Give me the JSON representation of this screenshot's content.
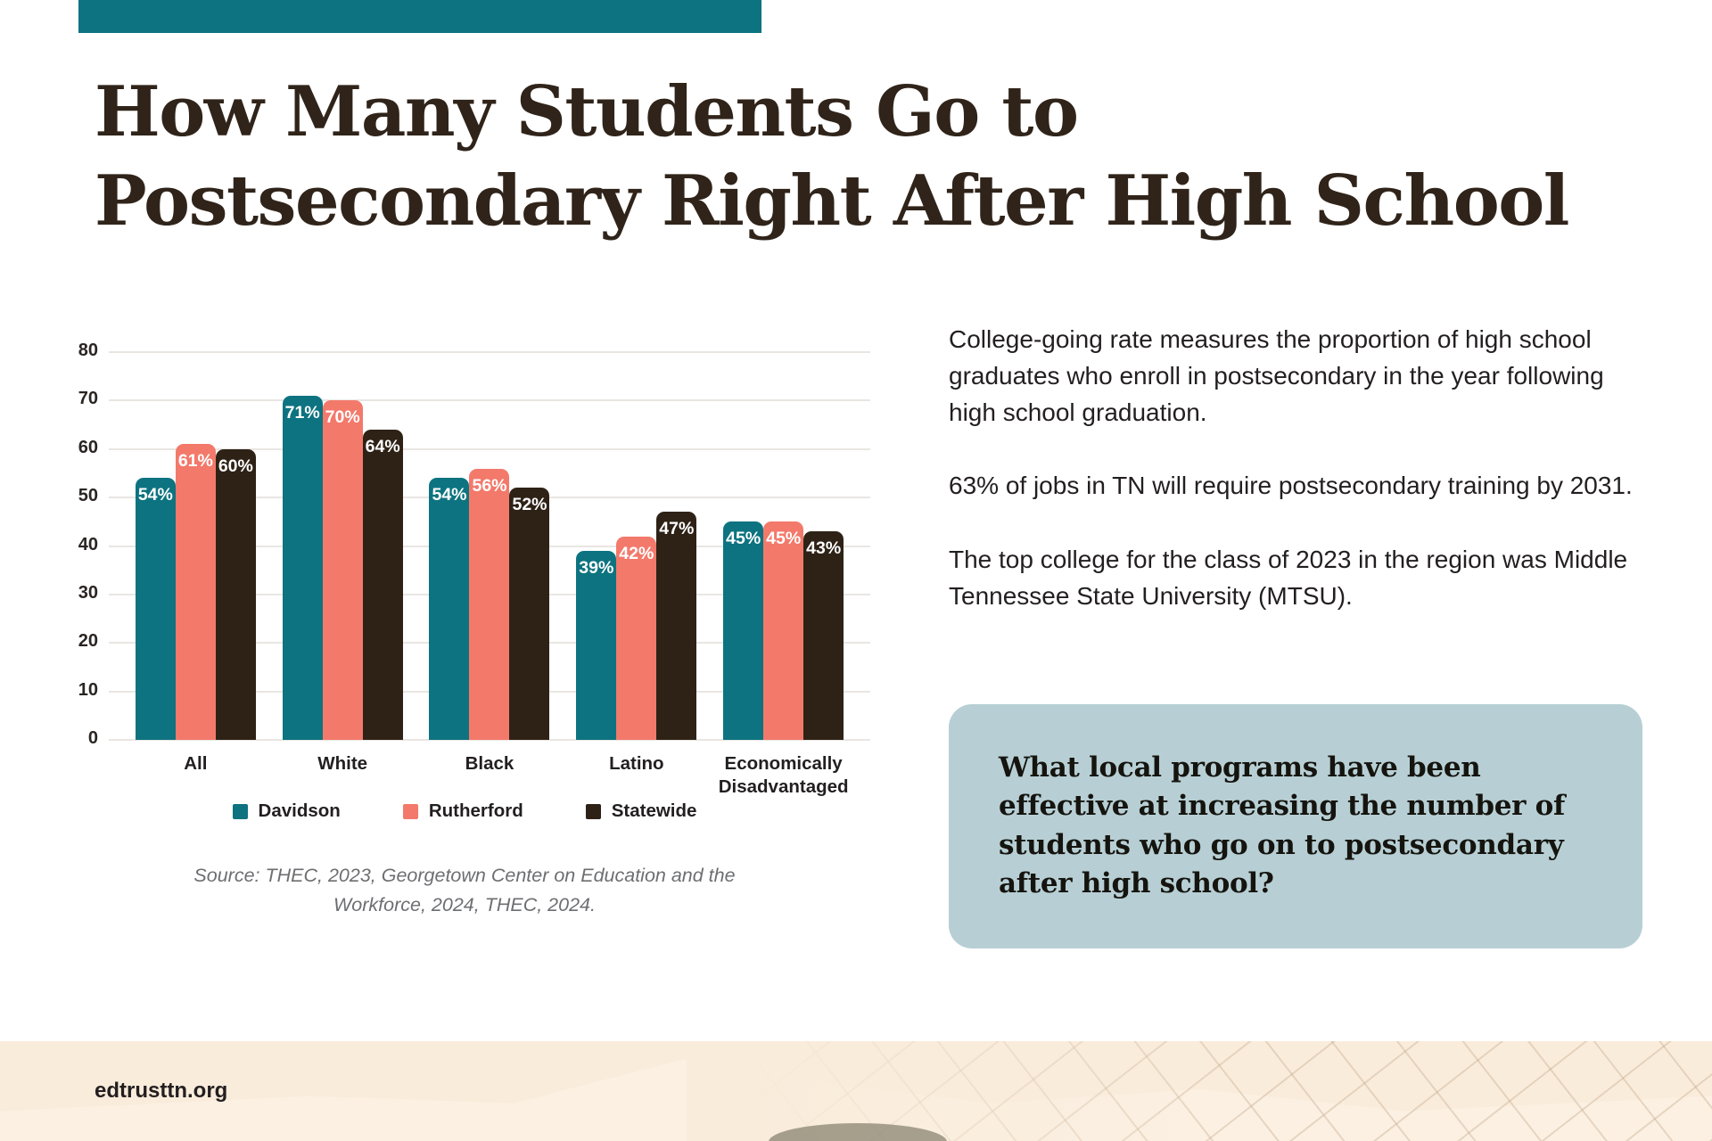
{
  "theme": {
    "accent_teal": "#0d7380",
    "salmon": "#f3796b",
    "dark_brown": "#2e2217",
    "question_box_bg": "#b7cfd4",
    "footer_bg": "#f9ecdb",
    "title_color": "#30241a"
  },
  "title": {
    "line1": "How Many Students Go to",
    "line2": "Postsecondary Right After High School"
  },
  "chart_data": {
    "type": "bar",
    "title": "",
    "categories": [
      "All",
      "White",
      "Black",
      "Latino",
      "Economically Disadvantaged"
    ],
    "series": [
      {
        "name": "Davidson",
        "color": "#0d7380",
        "values": [
          54,
          71,
          54,
          39,
          45
        ]
      },
      {
        "name": "Rutherford",
        "color": "#f3796b",
        "values": [
          61,
          70,
          56,
          42,
          45
        ]
      },
      {
        "name": "Statewide",
        "color": "#2e2217",
        "values": [
          60,
          64,
          52,
          47,
          43
        ]
      }
    ],
    "value_suffix": "%",
    "xlabel": "",
    "ylabel": "",
    "ylim": [
      0,
      80
    ],
    "yticks": [
      0,
      10,
      20,
      30,
      40,
      50,
      60,
      70,
      80
    ],
    "grid": true,
    "legend_position": "bottom"
  },
  "source": {
    "line1": "Source: THEC, 2023, Georgetown Center on Education and the",
    "line2": "Workforce, 2024, THEC, 2024."
  },
  "intro": {
    "paragraphs": [
      "College-going rate measures the proportion of high school graduates who enroll in postsecondary in the year following high school graduation.",
      "63% of jobs in TN will require postsecondary training by 2031.",
      "The top college for the class of 2023 in the region was Middle Tennessee State University (MTSU)."
    ]
  },
  "question_box": {
    "text": "What local programs have been effective at increasing the number of students who go on to postsecondary after high school?"
  },
  "footer": {
    "site": "edtrusttn.org"
  }
}
